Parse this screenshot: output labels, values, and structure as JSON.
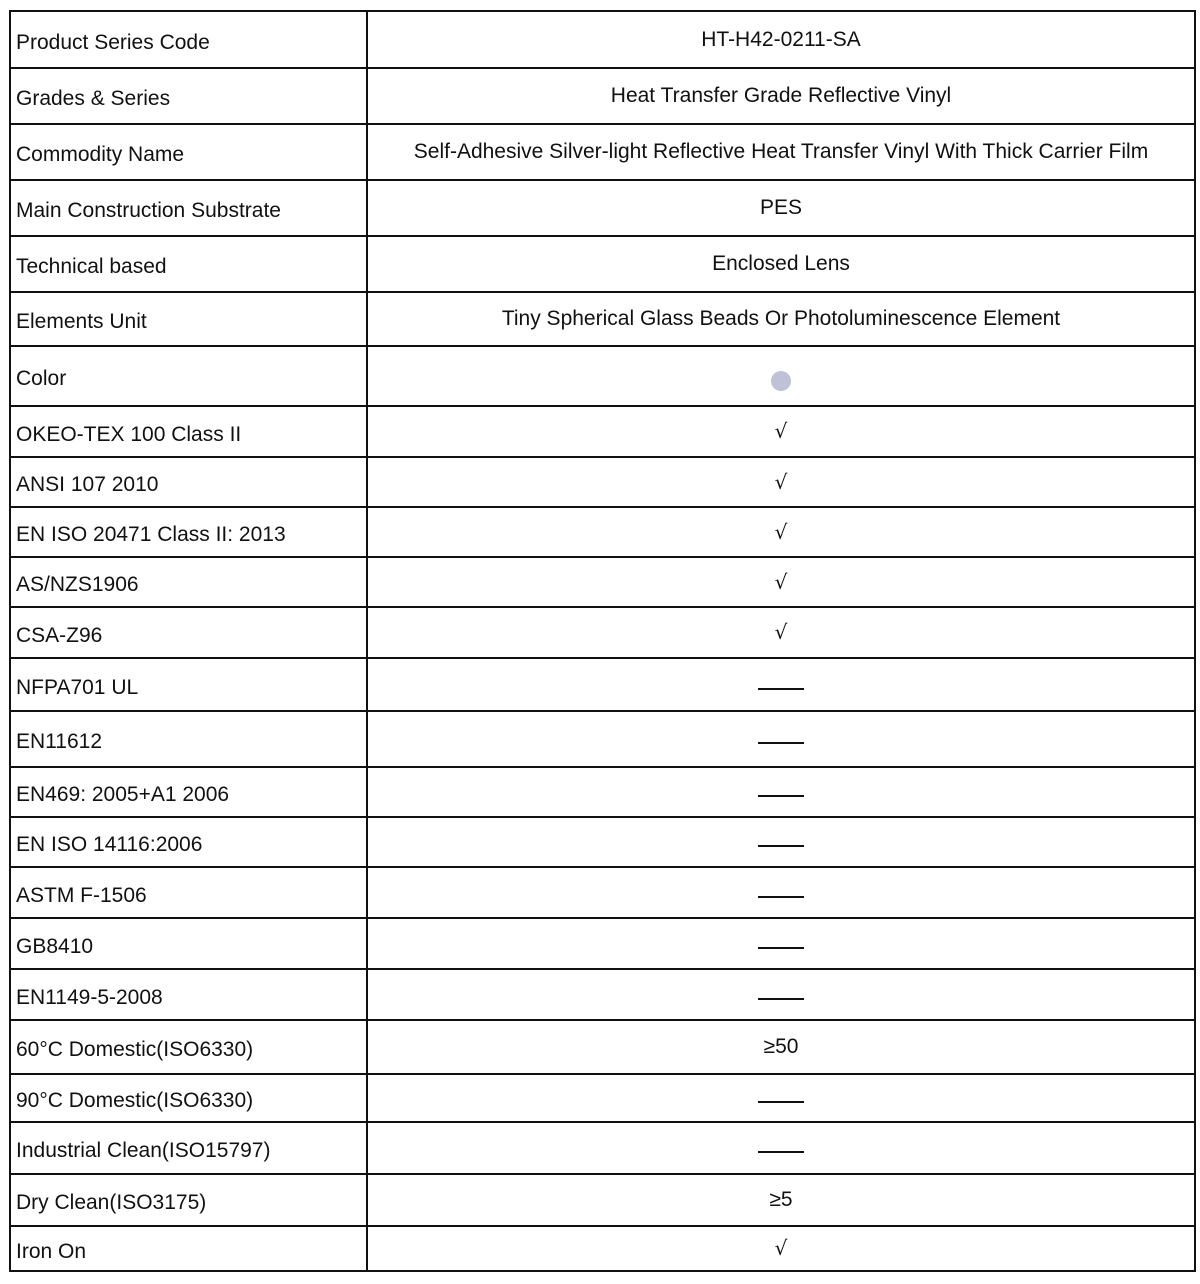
{
  "colors": {
    "swatch": "#C0C0D6"
  },
  "rows": [
    {
      "label": "Product Series Code",
      "type": "text",
      "value": "HT-H42-0211-SA"
    },
    {
      "label": "Grades & Series",
      "type": "text",
      "value": "Heat Transfer Grade Reflective Vinyl"
    },
    {
      "label": "Commodity Name",
      "type": "text",
      "value": "Self-Adhesive Silver-light Reflective Heat Transfer Vinyl With Thick Carrier Film"
    },
    {
      "label": "Main Construction Substrate",
      "type": "text",
      "value": "PES"
    },
    {
      "label": "Technical based",
      "type": "text",
      "value": "Enclosed Lens"
    },
    {
      "label": "Elements Unit",
      "type": "text",
      "value": "Tiny Spherical Glass Beads Or Photoluminescence Element"
    },
    {
      "label": "Color",
      "type": "dot",
      "value": "silver-color-swatch"
    },
    {
      "label": "OKEO-TEX 100 Class II",
      "type": "check",
      "value": "√"
    },
    {
      "label": "ANSI 107 2010",
      "type": "check",
      "value": "√"
    },
    {
      "label": "EN ISO 20471 Class II: 2013",
      "type": "check",
      "value": "√"
    },
    {
      "label": "AS/NZS1906",
      "type": "check",
      "value": "√"
    },
    {
      "label": "CSA-Z96",
      "type": "check",
      "value": "√"
    },
    {
      "label": "NFPA701 UL",
      "type": "dash",
      "value": "not-applicable"
    },
    {
      "label": "EN11612",
      "type": "dash",
      "value": "not-applicable"
    },
    {
      "label": "EN469: 2005+A1 2006",
      "type": "dash",
      "value": "not-applicable"
    },
    {
      "label": "EN ISO 14116:2006",
      "type": "dash",
      "value": "not-applicable"
    },
    {
      "label": "ASTM F-1506",
      "type": "dash",
      "value": "not-applicable"
    },
    {
      "label": "GB8410",
      "type": "dash",
      "value": "not-applicable"
    },
    {
      "label": "EN1149-5-2008",
      "type": "dash",
      "value": "not-applicable"
    },
    {
      "label": "60°C Domestic(ISO6330)",
      "type": "text",
      "value": "≥50"
    },
    {
      "label": "90°C Domestic(ISO6330)",
      "type": "dash",
      "value": "not-applicable"
    },
    {
      "label": "Industrial Clean(ISO15797)",
      "type": "dash",
      "value": "not-applicable"
    },
    {
      "label": "Dry Clean(ISO3175)",
      "type": "text",
      "value": "≥5"
    },
    {
      "label": "Iron On",
      "type": "check",
      "value": "√"
    }
  ]
}
